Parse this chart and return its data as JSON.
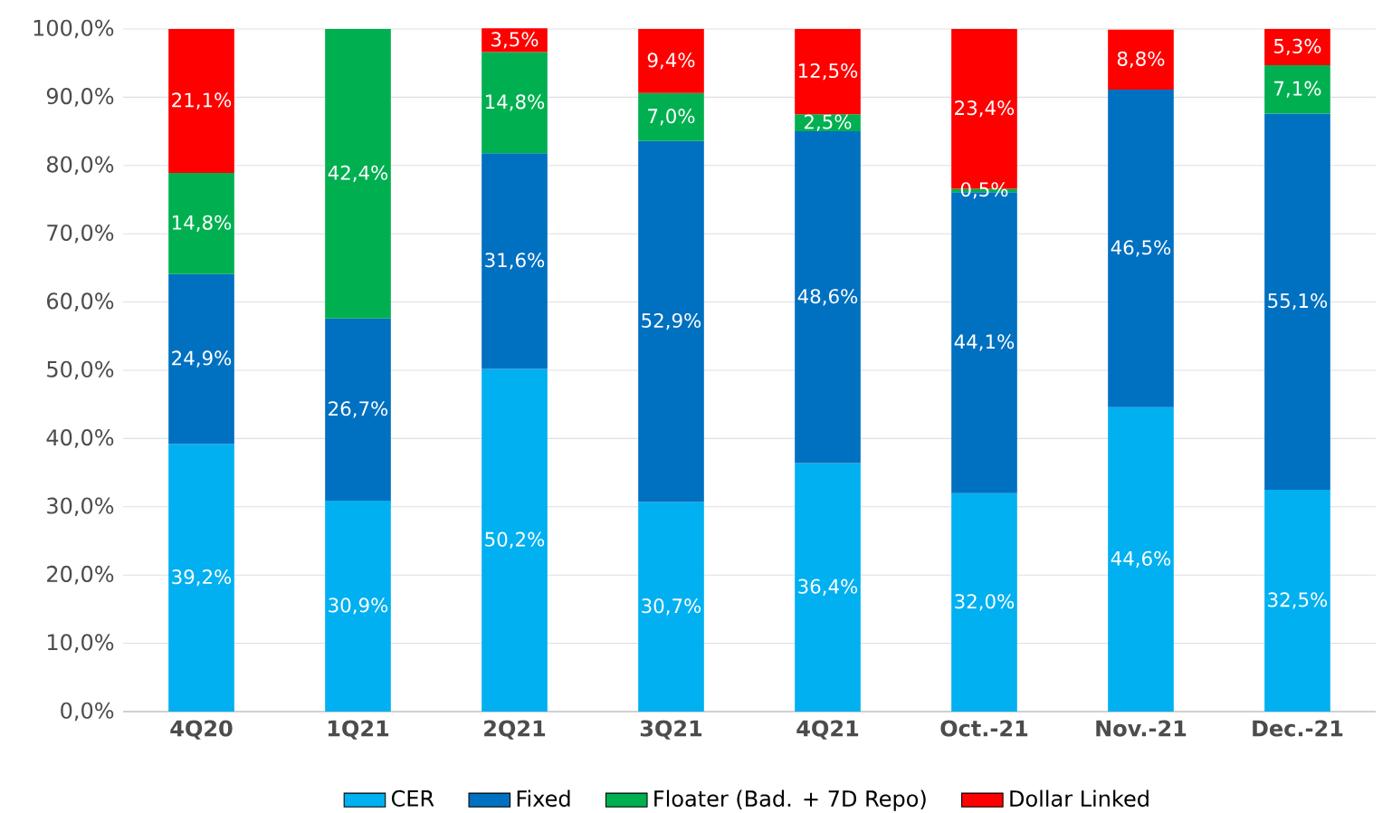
{
  "chart_data": {
    "type": "bar",
    "stacked": true,
    "grid": "y",
    "legend": "bottom",
    "categories": [
      "4Q20",
      "1Q21",
      "2Q21",
      "3Q21",
      "4Q21",
      "Oct.-21",
      "Nov.-21",
      "Dec.-21"
    ],
    "ylim": [
      0,
      100
    ],
    "yticks": [
      {
        "value": 0,
        "label": "0,0%"
      },
      {
        "value": 10,
        "label": "10,0%"
      },
      {
        "value": 20,
        "label": "20,0%"
      },
      {
        "value": 30,
        "label": "30,0%"
      },
      {
        "value": 40,
        "label": "40,0%"
      },
      {
        "value": 50,
        "label": "50,0%"
      },
      {
        "value": 60,
        "label": "60,0%"
      },
      {
        "value": 70,
        "label": "70,0%"
      },
      {
        "value": 80,
        "label": "80,0%"
      },
      {
        "value": 90,
        "label": "90,0%"
      },
      {
        "value": 100,
        "label": "100,0%"
      }
    ],
    "series": [
      {
        "name": "CER",
        "color": "#00b0f0",
        "values": [
          39.2,
          30.9,
          50.2,
          30.7,
          36.4,
          32.0,
          44.6,
          32.5
        ],
        "value_labels": [
          "39,2%",
          "30,9%",
          "50,2%",
          "30,7%",
          "36,4%",
          "32,0%",
          "44,6%",
          "32,5%"
        ]
      },
      {
        "name": "Fixed",
        "color": "#0070c0",
        "values": [
          24.9,
          26.7,
          31.6,
          52.9,
          48.6,
          44.1,
          46.5,
          55.1
        ],
        "value_labels": [
          "24,9%",
          "26,7%",
          "31,6%",
          "52,9%",
          "48,6%",
          "44,1%",
          "46,5%",
          "55,1%"
        ]
      },
      {
        "name": "Floater (Bad. + 7D Repo)",
        "color": "#00b050",
        "values": [
          14.8,
          42.4,
          14.8,
          7.0,
          2.5,
          0.5,
          null,
          7.1
        ],
        "value_labels": [
          "14,8%",
          "42,4%",
          "14,8%",
          "7,0%",
          "2,5%",
          "0,5%",
          null,
          "7,1%"
        ]
      },
      {
        "name": "Dollar Linked",
        "color": "#ff0000",
        "values": [
          21.1,
          null,
          3.5,
          9.4,
          12.5,
          23.4,
          8.8,
          5.3
        ],
        "value_labels": [
          "21,1%",
          null,
          "3,5%",
          "9,4%",
          "12,5%",
          "23,4%",
          "8,8%",
          "5,3%"
        ]
      }
    ]
  }
}
